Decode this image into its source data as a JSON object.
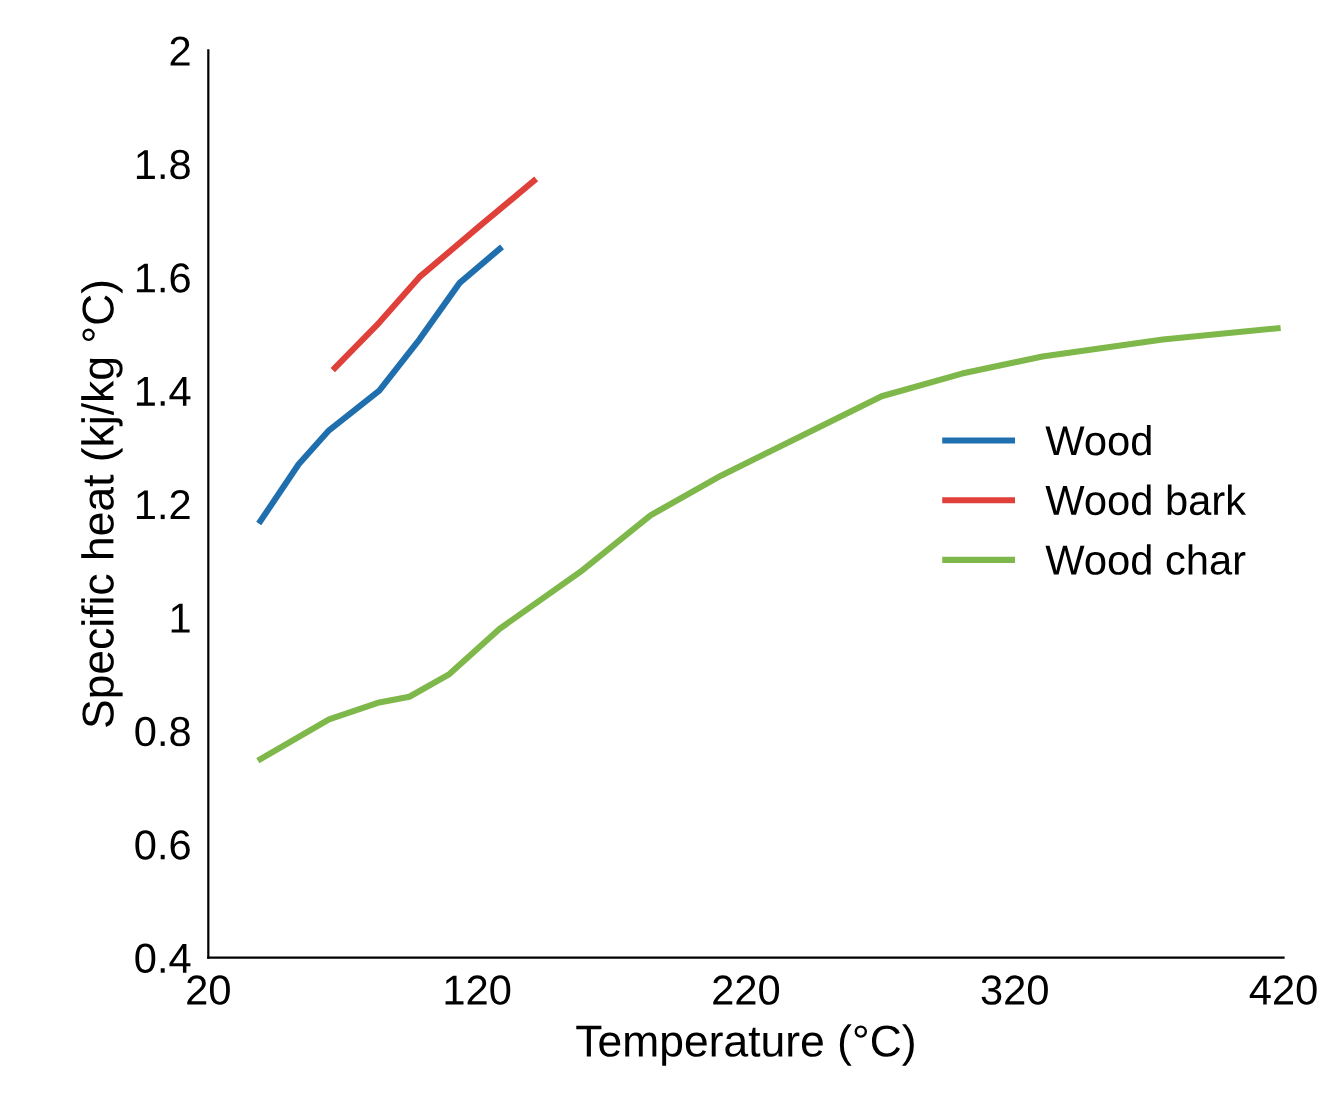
{
  "chart_data": {
    "type": "line",
    "xlabel": "Temperature (°C)",
    "ylabel": "Specific heat (kj/kg °C)",
    "xlim": [
      20,
      420
    ],
    "xticks": [
      20,
      120,
      220,
      320,
      420
    ],
    "ylim": [
      0.4,
      2
    ],
    "yticks": [
      0.4,
      0.6,
      0.8,
      1,
      1.2,
      1.4,
      1.6,
      1.8,
      2
    ],
    "grid": false,
    "legend": "right",
    "marker": "none",
    "line_style": "solid",
    "series": [
      {
        "name": "Wood",
        "color": "#1f6fae",
        "x": [
          39.4,
          53.6,
          64.9,
          83.6,
          98.5,
          113.5,
          128.4
        ],
        "values": [
          1.17,
          1.27,
          1.33,
          1.4,
          1.49,
          1.59,
          1.65
        ]
      },
      {
        "name": "Wood bark",
        "color": "#e0403a",
        "x": [
          67.1,
          83.6,
          98.5,
          120.9,
          141.1
        ],
        "values": [
          1.44,
          1.52,
          1.6,
          1.69,
          1.77
        ]
      },
      {
        "name": "Wood char",
        "color": "#7fb84a",
        "x": [
          39.4,
          64.9,
          83.6,
          94.8,
          109.7,
          128.4,
          158.3,
          184.5,
          210.7,
          240.6,
          270.5,
          300.4,
          330.3,
          375.1,
          417.8
        ],
        "values": [
          0.75,
          0.82,
          0.85,
          0.86,
          0.9,
          0.98,
          1.08,
          1.18,
          1.25,
          1.32,
          1.39,
          1.43,
          1.46,
          1.49,
          1.51
        ]
      }
    ]
  }
}
